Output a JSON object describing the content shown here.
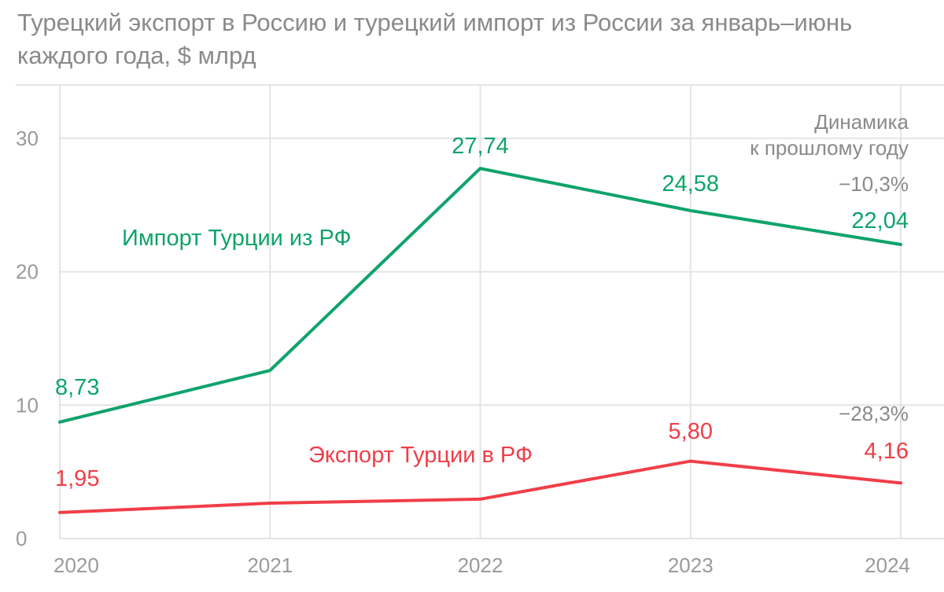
{
  "chart_data": {
    "type": "line",
    "title": "Турецкий экспорт в Россию и турецкий импорт из России за январь–июнь каждого года, $ млрд",
    "xlabel": "",
    "ylabel": "",
    "x": [
      "2020",
      "2021",
      "2022",
      "2023",
      "2024"
    ],
    "ylim": [
      0,
      34
    ],
    "yticks": [
      {
        "value": 0,
        "label": "0"
      },
      {
        "value": 10,
        "label": "10"
      },
      {
        "value": 20,
        "label": "20"
      },
      {
        "value": 30,
        "label": "30"
      }
    ],
    "grid": true,
    "series": [
      {
        "name": "Импорт Турции из РФ",
        "color": "#0fa36b",
        "values": [
          8.73,
          12.6,
          27.74,
          24.58,
          22.04
        ],
        "point_labels": [
          "8,73",
          "",
          "27,74",
          "24,58",
          "22,04"
        ],
        "change": "−10,3%"
      },
      {
        "name": "Экспорт Турции в РФ",
        "color": "#f03e48",
        "values": [
          1.95,
          2.65,
          2.95,
          5.8,
          4.16
        ],
        "point_labels": [
          "1,95",
          "",
          "",
          "5,80",
          "4,16"
        ],
        "change": "−28,3%"
      }
    ],
    "annotations": {
      "dynamics_line1": "Динамика",
      "dynamics_line2": "к прошлому году"
    }
  }
}
